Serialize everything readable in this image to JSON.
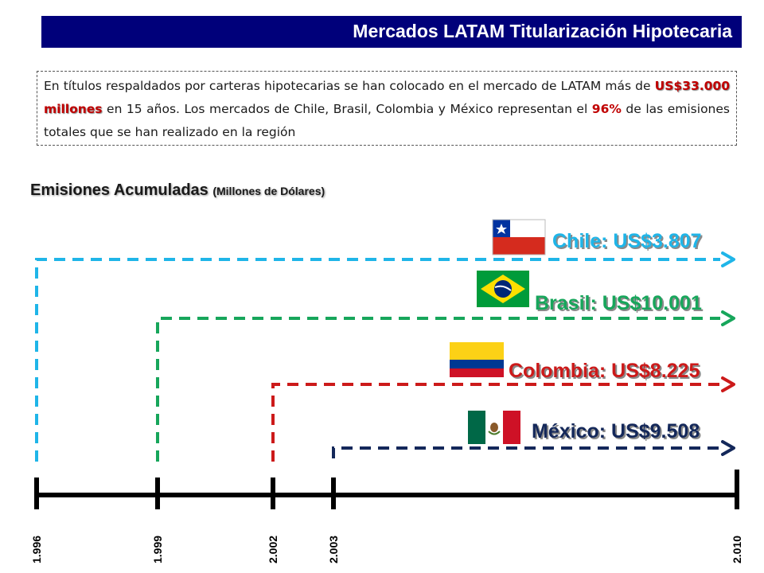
{
  "header": {
    "title": "Mercados LATAM Titularización Hipotecaria"
  },
  "intro": {
    "part1": "En títulos respaldados por carteras hipotecarias se han colocado en el mercado de LATAM más de ",
    "amount": "US$33.000 millones",
    "part2": " en 15 años. Los mercados de Chile, Brasil, Colombia y México representan el ",
    "percent": "96%",
    "part3": " de las emisiones totales que se han realizado en la región"
  },
  "subtitle": {
    "main": "Emisiones Acumuladas",
    "unit": "(Millones de Dólares)"
  },
  "timeline": {
    "start": 1996,
    "end": 2010,
    "ticks": [
      {
        "year": 1996,
        "label": "1.996"
      },
      {
        "year": 1999,
        "label": "1.999"
      },
      {
        "year": 2002,
        "label": "2.002"
      },
      {
        "year": 2003,
        "label": "2.003"
      },
      {
        "year": 2010,
        "label": "2.010"
      }
    ]
  },
  "markets": [
    {
      "id": "chile",
      "label": "Chile: US$3.807",
      "start": 1996,
      "color": "#1fb5e8",
      "flag": "chile-flag-icon"
    },
    {
      "id": "brasil",
      "label": "Brasil: US$10.001",
      "start": 1999,
      "color": "#17a65b",
      "flag": "brazil-flag-icon"
    },
    {
      "id": "colombia",
      "label": "Colombia: US$8.225",
      "start": 2002,
      "color": "#cc1a1a",
      "flag": "colombia-flag-icon"
    },
    {
      "id": "mexico",
      "label": "México: US$9.508",
      "start": 2003,
      "color": "#14285a",
      "flag": "mexico-flag-icon"
    }
  ]
}
